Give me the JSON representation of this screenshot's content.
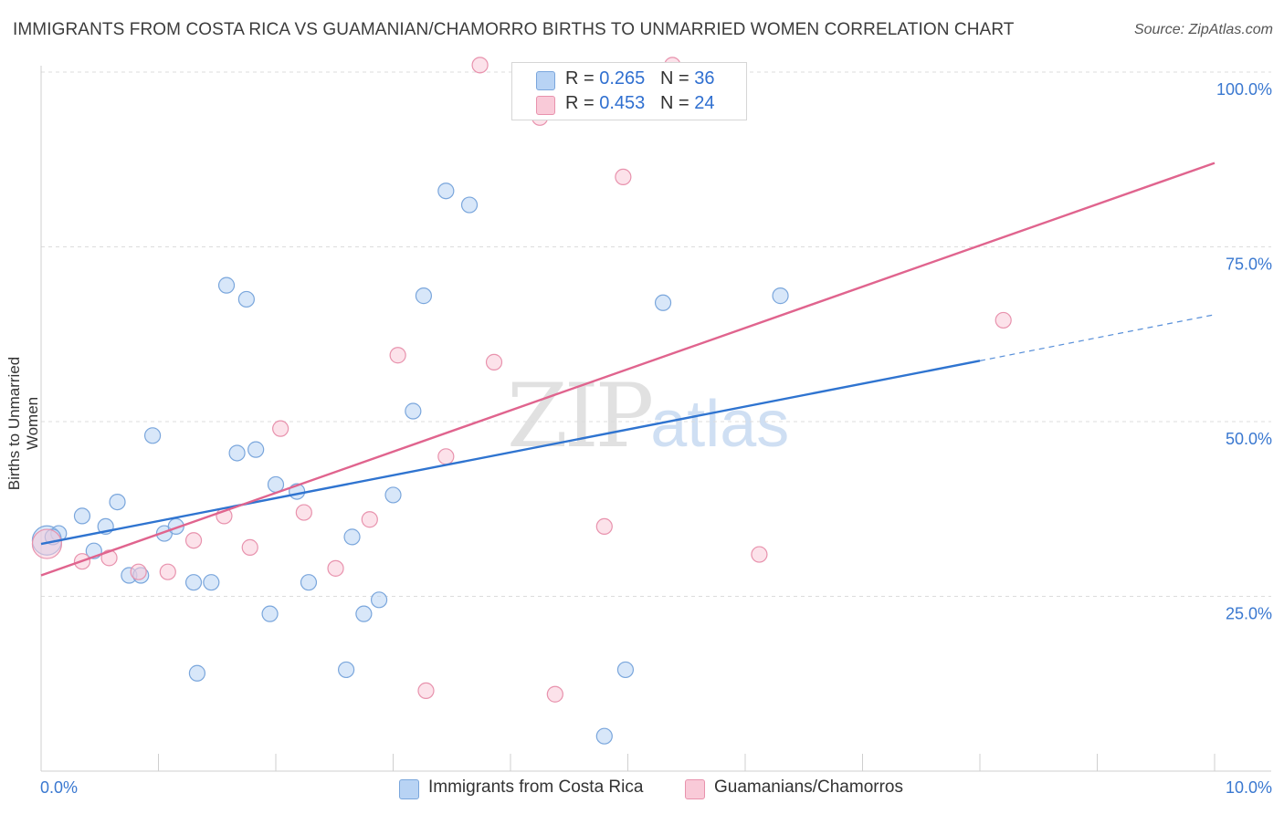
{
  "title": "IMMIGRANTS FROM COSTA RICA VS GUAMANIAN/CHAMORRO BIRTHS TO UNMARRIED WOMEN CORRELATION CHART",
  "source": "Source: ZipAtlas.com",
  "watermark": {
    "zip": "ZIP",
    "atlas": "atlas"
  },
  "legend_top": {
    "series1": {
      "r_label": "R = ",
      "r_value": "0.265",
      "n_label": "N = ",
      "n_value": "36"
    },
    "series2": {
      "r_label": "R = ",
      "r_value": "0.453",
      "n_label": "N = ",
      "n_value": "24"
    }
  },
  "colors": {
    "blue_fill": "#b8d3f4",
    "blue_stroke": "#7aa6dc",
    "blue_line": "#2f74d0",
    "pink_fill": "#f9cad8",
    "pink_stroke": "#e892ad",
    "pink_line": "#e0648e",
    "tick_text": "#3a78d0",
    "grid": "#dcdcdc"
  },
  "chart_data": {
    "type": "scatter",
    "title": "IMMIGRANTS FROM COSTA RICA VS GUAMANIAN/CHAMORRO BIRTHS TO UNMARRIED WOMEN CORRELATION CHART",
    "xlabel": "",
    "ylabel": "Births to Unmarried Women",
    "xlim": [
      0,
      10
    ],
    "ylim": [
      0,
      102
    ],
    "x_tick_labels": [
      {
        "value": 0,
        "label": "0.0%"
      },
      {
        "value": 10,
        "label": "10.0%"
      }
    ],
    "y_tick_labels": [
      {
        "value": 25,
        "label": "25.0%"
      },
      {
        "value": 50,
        "label": "50.0%"
      },
      {
        "value": 75,
        "label": "75.0%"
      },
      {
        "value": 100,
        "label": "100.0%"
      }
    ],
    "series": [
      {
        "name": "Immigrants from Costa Rica",
        "color": "blue",
        "points": [
          {
            "x": 0.05,
            "y": 33.0,
            "big": true
          },
          {
            "x": 0.15,
            "y": 34.0
          },
          {
            "x": 0.35,
            "y": 36.5
          },
          {
            "x": 0.45,
            "y": 31.5
          },
          {
            "x": 0.55,
            "y": 35.0
          },
          {
            "x": 0.65,
            "y": 38.5
          },
          {
            "x": 0.75,
            "y": 28.0
          },
          {
            "x": 0.85,
            "y": 28.0
          },
          {
            "x": 0.95,
            "y": 48.0
          },
          {
            "x": 1.05,
            "y": 34.0
          },
          {
            "x": 1.15,
            "y": 35.0
          },
          {
            "x": 1.3,
            "y": 27.0
          },
          {
            "x": 1.33,
            "y": 14.0
          },
          {
            "x": 1.45,
            "y": 27.0
          },
          {
            "x": 1.58,
            "y": 69.5
          },
          {
            "x": 1.67,
            "y": 45.5
          },
          {
            "x": 1.75,
            "y": 67.5
          },
          {
            "x": 1.83,
            "y": 46.0
          },
          {
            "x": 1.95,
            "y": 22.5
          },
          {
            "x": 2.0,
            "y": 41.0
          },
          {
            "x": 2.18,
            "y": 40.0
          },
          {
            "x": 2.28,
            "y": 27.0
          },
          {
            "x": 2.6,
            "y": 14.5
          },
          {
            "x": 2.65,
            "y": 33.5
          },
          {
            "x": 2.75,
            "y": 22.5
          },
          {
            "x": 2.88,
            "y": 24.5
          },
          {
            "x": 3.0,
            "y": 39.5
          },
          {
            "x": 3.17,
            "y": 51.5
          },
          {
            "x": 3.26,
            "y": 68.0
          },
          {
            "x": 3.45,
            "y": 83.0
          },
          {
            "x": 3.65,
            "y": 81.0
          },
          {
            "x": 4.8,
            "y": 5.0
          },
          {
            "x": 4.98,
            "y": 14.5
          },
          {
            "x": 5.3,
            "y": 67.0
          },
          {
            "x": 6.3,
            "y": 68.0
          },
          {
            "x": 0.1,
            "y": 33.5
          }
        ],
        "trend": {
          "x_start": 0,
          "y_start": 32.5,
          "x_end": 8.0,
          "y_end": 58.7,
          "dash_to_x": 10.0,
          "dash_to_y": 65.3
        }
      },
      {
        "name": "Guamanians/Chamorros",
        "color": "pink",
        "points": [
          {
            "x": 0.05,
            "y": 32.5,
            "big": true
          },
          {
            "x": 0.35,
            "y": 30.0
          },
          {
            "x": 0.58,
            "y": 30.5
          },
          {
            "x": 0.83,
            "y": 28.5
          },
          {
            "x": 1.08,
            "y": 28.5
          },
          {
            "x": 1.3,
            "y": 33.0
          },
          {
            "x": 1.56,
            "y": 36.5
          },
          {
            "x": 1.78,
            "y": 32.0
          },
          {
            "x": 2.04,
            "y": 49.0
          },
          {
            "x": 2.24,
            "y": 37.0
          },
          {
            "x": 2.51,
            "y": 29.0
          },
          {
            "x": 2.8,
            "y": 36.0
          },
          {
            "x": 3.04,
            "y": 59.5
          },
          {
            "x": 3.28,
            "y": 11.5
          },
          {
            "x": 3.45,
            "y": 45.0
          },
          {
            "x": 3.74,
            "y": 101.0
          },
          {
            "x": 3.86,
            "y": 58.5
          },
          {
            "x": 4.25,
            "y": 93.5
          },
          {
            "x": 4.38,
            "y": 11.0
          },
          {
            "x": 4.8,
            "y": 35.0
          },
          {
            "x": 4.96,
            "y": 85.0
          },
          {
            "x": 5.38,
            "y": 101.0
          },
          {
            "x": 6.12,
            "y": 31.0
          },
          {
            "x": 8.2,
            "y": 64.5
          }
        ],
        "trend": {
          "x_start": 0,
          "y_start": 28.0,
          "x_end": 10.0,
          "y_end": 87.0
        }
      }
    ]
  },
  "bottom_legend": {
    "series1": "Immigrants from Costa Rica",
    "series2": "Guamanians/Chamorros"
  }
}
